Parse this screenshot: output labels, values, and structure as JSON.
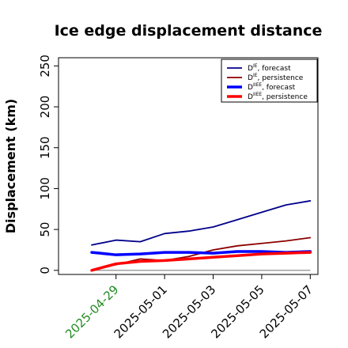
{
  "chart_data": {
    "type": "line",
    "title": "Ice edge displacement distance",
    "xlabel": "",
    "ylabel": "Displacement (km)",
    "x": [
      "2025-04-28",
      "2025-04-29",
      "2025-04-30",
      "2025-05-01",
      "2025-05-02",
      "2025-05-03",
      "2025-05-04",
      "2025-05-05",
      "2025-05-06",
      "2025-05-07"
    ],
    "x_tick_labels": [
      "2025-04-29",
      "2025-05-01",
      "2025-05-03",
      "2025-05-05",
      "2025-05-07"
    ],
    "highlight_tick": "2025-04-29",
    "highlight_color": "#228b22",
    "ylim": [
      -5,
      260
    ],
    "y_ticks": [
      0,
      50,
      100,
      150,
      200,
      250
    ],
    "grid": false,
    "legend_position": "top-right",
    "reference_line": {
      "y": 0,
      "color": "#808080"
    },
    "series": [
      {
        "name": "D^IE, forecast",
        "name_base": "D",
        "name_sup": "IE",
        "name_rest": ", forecast",
        "color": "#00008b",
        "width": "thin",
        "values": [
          31,
          37,
          35,
          45,
          48,
          53,
          62,
          71,
          80,
          85
        ]
      },
      {
        "name": "D^IE, persistence",
        "name_base": "D",
        "name_sup": "IE",
        "name_rest": ", persistence",
        "color": "#8b0000",
        "width": "thin",
        "values": [
          0,
          7,
          14,
          12,
          17,
          25,
          30,
          33,
          36,
          40
        ]
      },
      {
        "name": "D^IIEE, forecast",
        "name_base": "D",
        "name_sup": "IIEE",
        "name_rest": ", forecast",
        "color": "#0000ff",
        "width": "thick",
        "values": [
          22,
          19,
          20,
          22,
          22,
          21,
          23,
          23,
          22,
          23
        ]
      },
      {
        "name": "D^IIEE, persistence",
        "name_base": "D",
        "name_sup": "IIEE",
        "name_rest": ", persistence",
        "color": "#ff0000",
        "width": "thick",
        "values": [
          0,
          8,
          11,
          12,
          14,
          16,
          18,
          20,
          21,
          22
        ]
      }
    ]
  }
}
